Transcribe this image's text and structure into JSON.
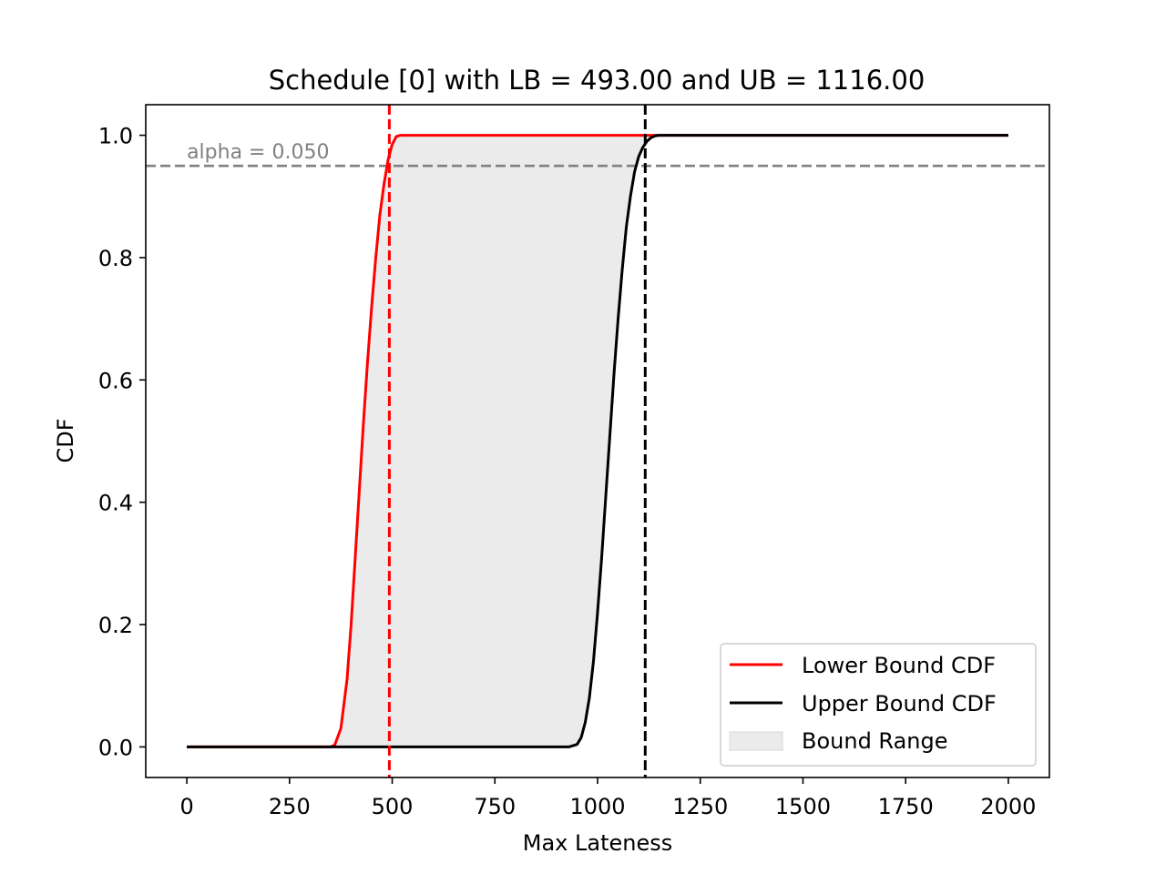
{
  "chart_data": {
    "type": "line",
    "title": "Schedule [0] with LB = 493.00 and UB = 1116.00",
    "xlabel": "Max Lateness",
    "ylabel": "CDF",
    "xlim": [
      -100,
      2100
    ],
    "ylim": [
      -0.05,
      1.05
    ],
    "xticks": [
      0,
      250,
      500,
      750,
      1000,
      1250,
      1500,
      1750,
      2000
    ],
    "xtick_labels": [
      "0",
      "250",
      "500",
      "750",
      "1000",
      "1250",
      "1500",
      "1750",
      "2000"
    ],
    "yticks": [
      0.0,
      0.2,
      0.4,
      0.6,
      0.8,
      1.0
    ],
    "ytick_labels": [
      "0.0",
      "0.2",
      "0.4",
      "0.6",
      "0.8",
      "1.0"
    ],
    "grid": false,
    "series": [
      {
        "name": "Lower Bound CDF",
        "color": "#ff0000",
        "x": [
          0,
          100,
          200,
          300,
          350,
          360,
          375,
          390,
          400,
          410,
          420,
          430,
          440,
          450,
          460,
          470,
          480,
          490,
          500,
          510,
          520,
          600,
          800,
          1000,
          1200,
          1400,
          1600,
          1800,
          2000
        ],
        "y": [
          0.0,
          0.0,
          0.0,
          0.0,
          0.0,
          0.003,
          0.03,
          0.11,
          0.2,
          0.31,
          0.42,
          0.53,
          0.63,
          0.72,
          0.8,
          0.87,
          0.92,
          0.96,
          0.985,
          0.998,
          1.0,
          1.0,
          1.0,
          1.0,
          1.0,
          1.0,
          1.0,
          1.0,
          1.0
        ]
      },
      {
        "name": "Upper Bound CDF",
        "color": "#000000",
        "x": [
          0,
          200,
          400,
          600,
          800,
          900,
          930,
          950,
          960,
          970,
          980,
          990,
          1000,
          1010,
          1020,
          1030,
          1040,
          1050,
          1060,
          1070,
          1080,
          1090,
          1100,
          1110,
          1120,
          1130,
          1140,
          1150,
          1200,
          1400,
          1600,
          1800,
          2000
        ],
        "y": [
          0.0,
          0.0,
          0.0,
          0.0,
          0.0,
          0.0,
          0.0,
          0.004,
          0.015,
          0.04,
          0.08,
          0.14,
          0.22,
          0.31,
          0.41,
          0.51,
          0.61,
          0.7,
          0.78,
          0.85,
          0.9,
          0.94,
          0.965,
          0.98,
          0.99,
          0.996,
          0.999,
          1.0,
          1.0,
          1.0,
          1.0,
          1.0,
          1.0
        ]
      }
    ],
    "fill_between": {
      "label": "Bound Range",
      "color": "#ebebeb"
    },
    "vlines": [
      {
        "x": 493,
        "color": "#ff0000",
        "style": "dashed"
      },
      {
        "x": 1116,
        "color": "#000000",
        "style": "dashed"
      }
    ],
    "hline": {
      "y": 0.95,
      "color": "#808080",
      "style": "dashed"
    },
    "annotation": {
      "text": "alpha = 0.050",
      "x": 0,
      "y": 0.95,
      "color": "#808080"
    },
    "legend": {
      "location": "lower right",
      "entries": [
        "Lower Bound CDF",
        "Upper Bound CDF",
        "Bound Range"
      ]
    }
  }
}
